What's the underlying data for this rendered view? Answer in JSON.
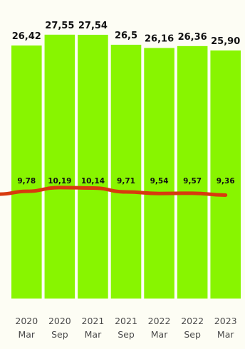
{
  "colors": {
    "bar": "#88f500",
    "line": "#d83a0e",
    "background": "#fdfdf4"
  },
  "chart_data": {
    "type": "bar",
    "categories": [
      [
        "2020",
        "Mar"
      ],
      [
        "2020",
        "Sep"
      ],
      [
        "2021",
        "Mar"
      ],
      [
        "2021",
        "Sep"
      ],
      [
        "2022",
        "Mar"
      ],
      [
        "2022",
        "Sep"
      ],
      [
        "2023",
        "Mar"
      ]
    ],
    "series": [
      {
        "type": "bar",
        "values": [
          26.42,
          27.55,
          27.54,
          26.5,
          26.16,
          26.36,
          25.9
        ],
        "labels": [
          "26,42",
          "27,55",
          "27,54",
          "26,5",
          "26,16",
          "26,36",
          "25,90"
        ]
      },
      {
        "type": "line",
        "values": [
          9.78,
          10.19,
          10.14,
          9.71,
          9.54,
          9.57,
          9.36
        ],
        "labels": [
          "9,78",
          "10,19",
          "10,14",
          "9,71",
          "9,54",
          "9,57",
          "9,36"
        ]
      }
    ],
    "ylim": [
      0,
      28.5
    ],
    "grid": false,
    "legend": false
  }
}
